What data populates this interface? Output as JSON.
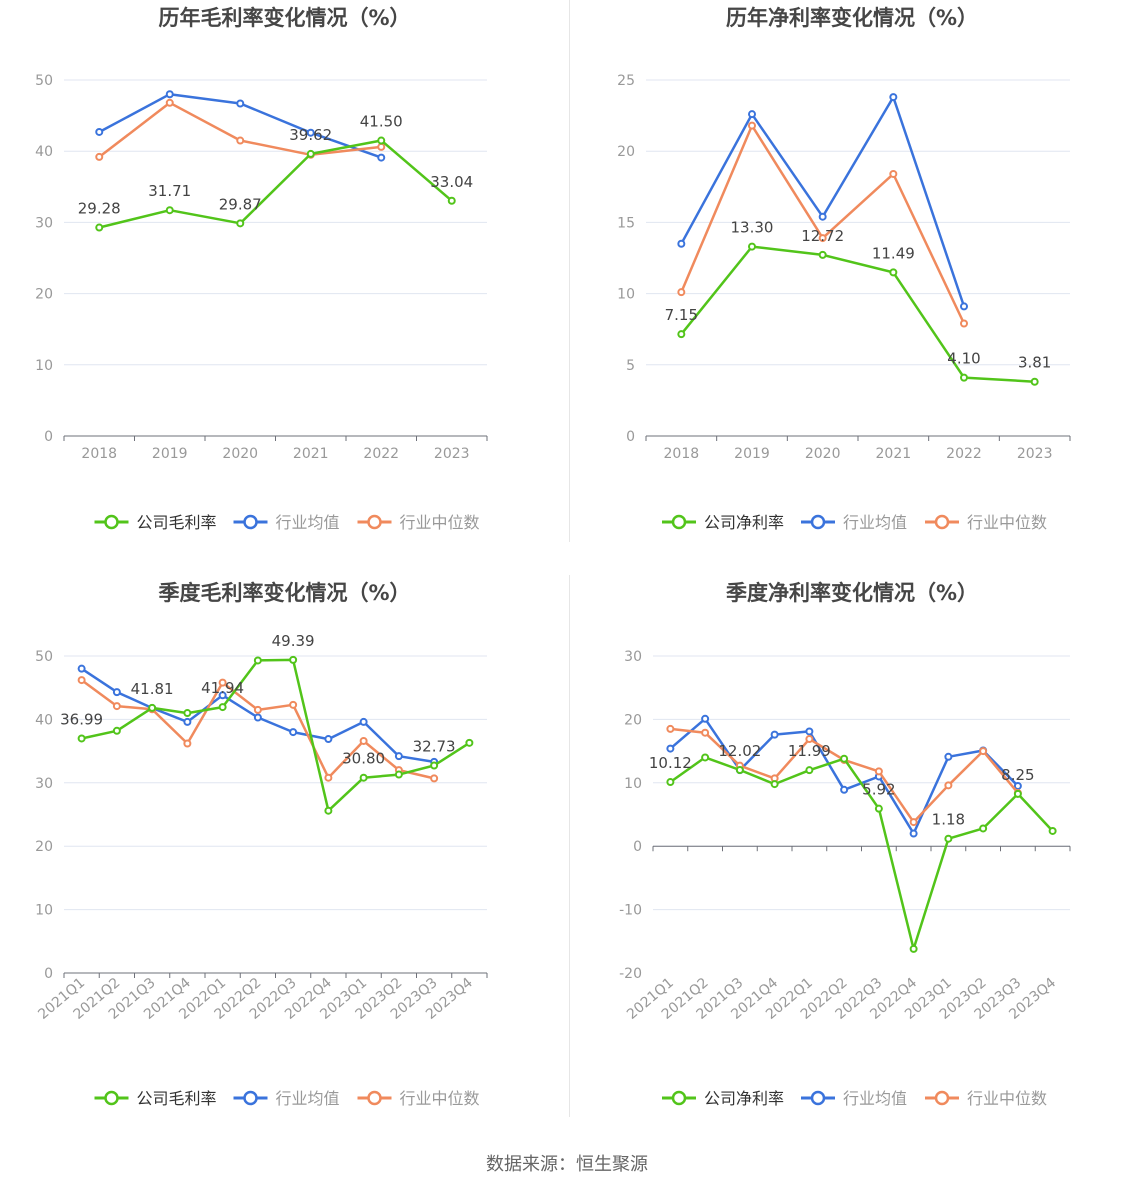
{
  "colors": {
    "company": "#52c41a",
    "avg": "#3a73dc",
    "median": "#f08a5d",
    "grid": "#e0e6f1",
    "axis": "#6e7079",
    "tick": "#999999",
    "title": "#464646",
    "label": "#444444"
  },
  "source": "数据来源：恒生聚源",
  "chart_data": [
    {
      "type": "line",
      "title": "历年毛利率变化情况（%）",
      "categories": [
        "2018",
        "2019",
        "2020",
        "2021",
        "2022",
        "2023"
      ],
      "ylim": [
        0,
        50
      ],
      "yticks": [
        "0",
        "10",
        "20",
        "30",
        "40",
        "50"
      ],
      "grid": true,
      "legend_position": "bottom",
      "series": [
        {
          "name": "公司毛利率",
          "values": [
            29.28,
            31.71,
            29.87,
            39.62,
            41.5,
            33.04
          ],
          "labels": [
            "29.28",
            "31.71",
            "29.87",
            "39.62",
            "41.50",
            "33.04"
          ]
        },
        {
          "name": "行业均值",
          "values": [
            42.7,
            48.0,
            46.7,
            42.6,
            39.1,
            null
          ]
        },
        {
          "name": "行业中位数",
          "values": [
            39.2,
            46.8,
            41.5,
            39.5,
            40.6,
            null
          ]
        }
      ]
    },
    {
      "type": "line",
      "title": "历年净利率变化情况（%）",
      "categories": [
        "2018",
        "2019",
        "2020",
        "2021",
        "2022",
        "2023"
      ],
      "ylim": [
        0,
        25
      ],
      "yticks": [
        "0",
        "5",
        "10",
        "15",
        "20",
        "25"
      ],
      "grid": true,
      "legend_position": "bottom",
      "series": [
        {
          "name": "公司净利率",
          "values": [
            7.15,
            13.3,
            12.72,
            11.49,
            4.1,
            3.81
          ],
          "labels": [
            "7.15",
            "13.30",
            "12.72",
            "11.49",
            "4.10",
            "3.81"
          ]
        },
        {
          "name": "行业均值",
          "values": [
            13.5,
            22.6,
            15.4,
            23.8,
            9.1,
            null
          ]
        },
        {
          "name": "行业中位数",
          "values": [
            10.1,
            21.8,
            13.9,
            18.4,
            7.9,
            null
          ]
        }
      ]
    },
    {
      "type": "line",
      "title": "季度毛利率变化情况（%）",
      "categories": [
        "2021Q1",
        "2021Q2",
        "2021Q3",
        "2021Q4",
        "2022Q1",
        "2022Q2",
        "2022Q3",
        "2022Q4",
        "2023Q1",
        "2023Q2",
        "2023Q3",
        "2023Q4"
      ],
      "ylim": [
        0,
        50
      ],
      "yticks": [
        "0",
        "10",
        "20",
        "30",
        "40",
        "50"
      ],
      "grid": true,
      "legend_position": "bottom",
      "series": [
        {
          "name": "公司毛利率",
          "values": [
            36.99,
            38.2,
            41.81,
            41.0,
            41.94,
            49.3,
            49.39,
            25.6,
            30.8,
            31.3,
            32.73,
            36.3
          ],
          "labels": [
            "36.99",
            "",
            "41.81",
            "",
            "41.94",
            "",
            "49.39",
            "",
            "30.80",
            "",
            "32.73",
            ""
          ]
        },
        {
          "name": "行业均值",
          "values": [
            48.0,
            44.3,
            41.8,
            39.6,
            43.8,
            40.3,
            38.0,
            36.9,
            39.6,
            34.2,
            33.3,
            null
          ]
        },
        {
          "name": "行业中位数",
          "values": [
            46.2,
            42.1,
            41.6,
            36.2,
            45.8,
            41.5,
            42.3,
            30.8,
            36.6,
            32.0,
            30.7,
            null
          ]
        }
      ]
    },
    {
      "type": "line",
      "title": "季度净利率变化情况（%）",
      "categories": [
        "2021Q1",
        "2021Q2",
        "2021Q3",
        "2021Q4",
        "2022Q1",
        "2022Q2",
        "2022Q3",
        "2022Q4",
        "2023Q1",
        "2023Q2",
        "2023Q3",
        "2023Q4"
      ],
      "ylim": [
        -20,
        30
      ],
      "yticks": [
        "-20",
        "-10",
        "0",
        "10",
        "20",
        "30"
      ],
      "grid": true,
      "legend_position": "bottom",
      "series": [
        {
          "name": "公司净利率",
          "values": [
            10.12,
            14.0,
            12.02,
            9.8,
            11.99,
            13.8,
            5.92,
            -16.2,
            1.18,
            2.8,
            8.25,
            2.4
          ],
          "labels": [
            "10.12",
            "",
            "12.02",
            "",
            "11.99",
            "",
            "5.92",
            "",
            "1.18",
            "",
            "8.25",
            ""
          ]
        },
        {
          "name": "行业均值",
          "values": [
            15.4,
            20.1,
            12.0,
            17.6,
            18.1,
            8.9,
            11.0,
            2.0,
            14.1,
            15.1,
            9.5,
            null
          ]
        },
        {
          "name": "行业中位数",
          "values": [
            18.5,
            17.9,
            12.7,
            10.7,
            16.9,
            13.6,
            11.8,
            3.8,
            9.6,
            15.0,
            8.4,
            null
          ]
        }
      ]
    }
  ]
}
